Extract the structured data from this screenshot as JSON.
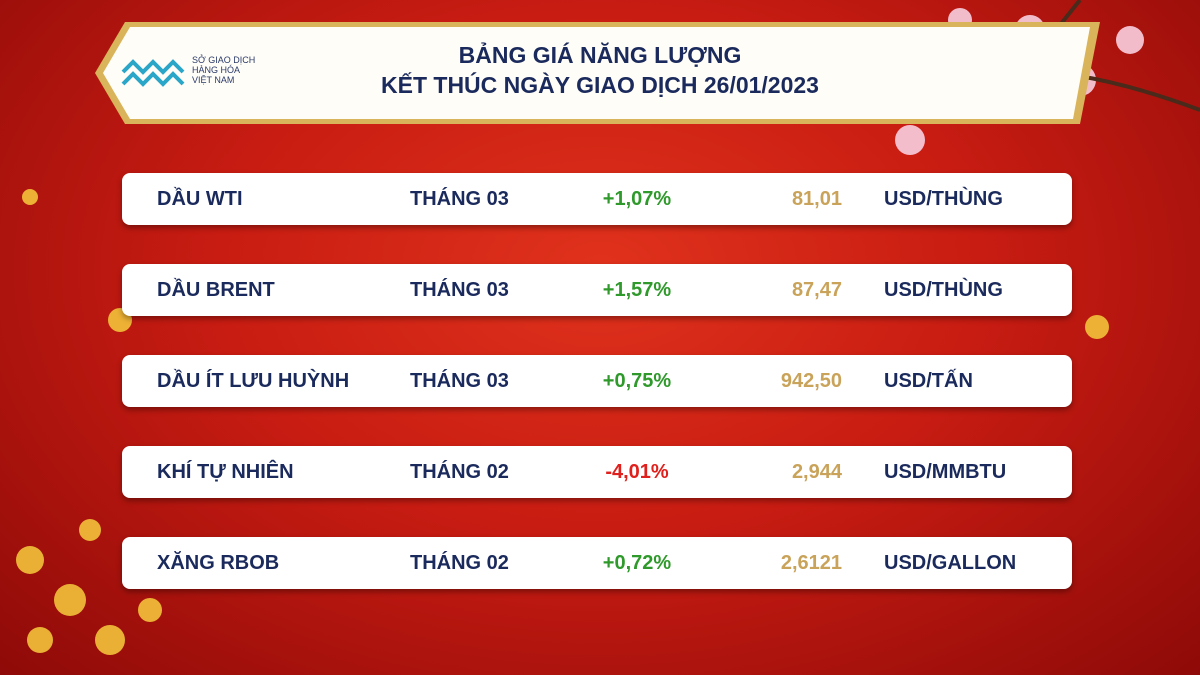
{
  "header": {
    "logo": [
      "SỞ GIAO DỊCH",
      "HÀNG HÓA",
      "VIỆT NAM"
    ],
    "title": [
      "BẢNG GIÁ NĂNG LƯỢNG",
      "KẾT THÚC NGÀY GIAO DỊCH 26/01/2023"
    ]
  },
  "table": {
    "rows": [
      [
        "DẦU WTI",
        "THÁNG 03",
        "+1,07%",
        "81,01",
        "USD/THÙNG"
      ],
      [
        "DẦU BRENT",
        "THÁNG 03",
        "+1,57%",
        "87,47",
        "USD/THÙNG"
      ],
      [
        "DẦU ÍT LƯU HUỲNH",
        "THÁNG 03",
        "+0,75%",
        "942,50",
        "USD/TẤN"
      ],
      [
        "KHÍ TỰ NHIÊN",
        "THÁNG 02",
        "-4,01%",
        "2,944",
        "USD/MMBTU"
      ],
      [
        "XĂNG RBOB",
        "THÁNG 02",
        "+0,72%",
        "2,6121",
        "USD/GALLON"
      ]
    ]
  }
}
